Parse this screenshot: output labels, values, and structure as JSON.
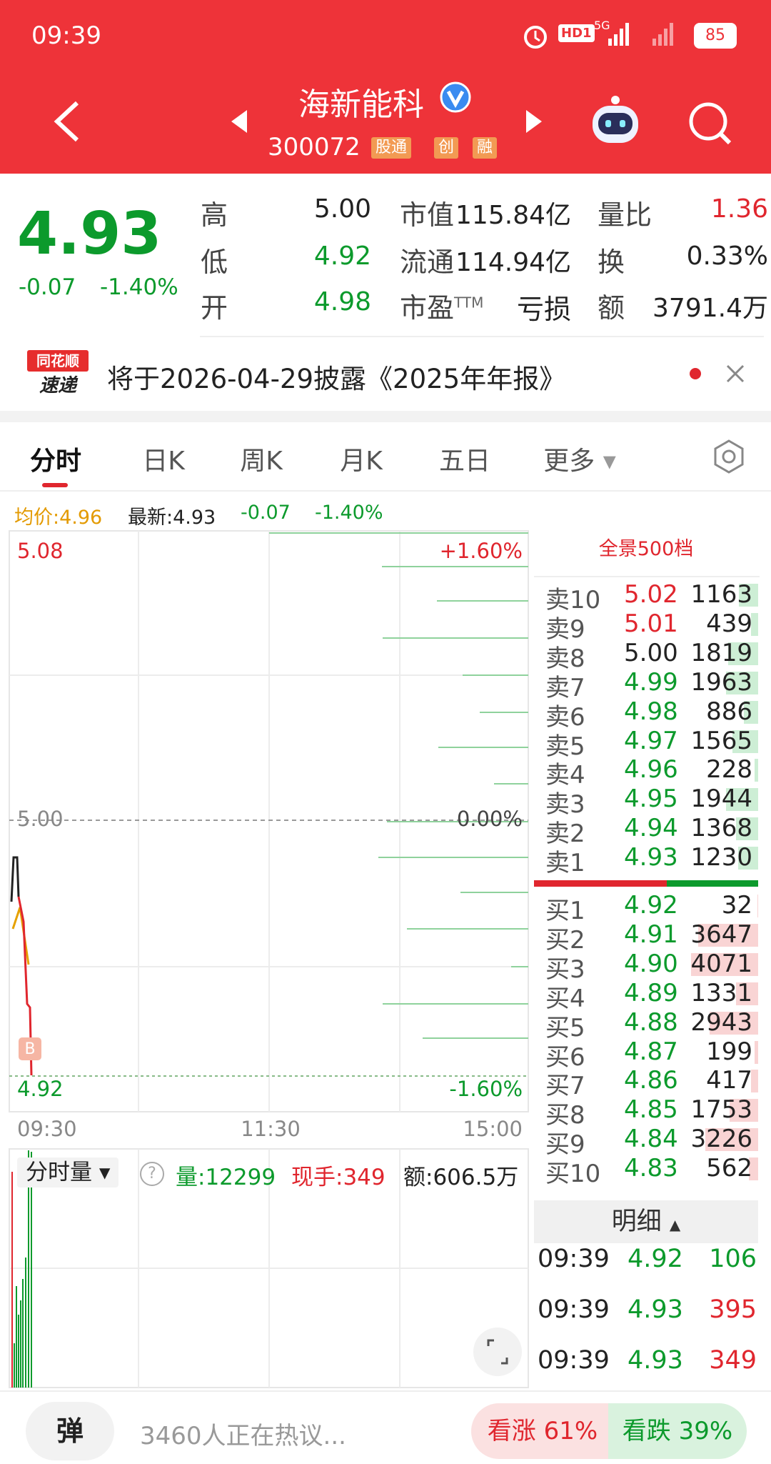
{
  "status_bar": {
    "time": "09:39",
    "hd": "HD1",
    "network": "5G",
    "battery": "85"
  },
  "header": {
    "name": "海新能科",
    "code": "300072",
    "tags": [
      "股通",
      "创",
      "融"
    ]
  },
  "quote": {
    "price": "4.93",
    "change": "-0.07",
    "change_pct": "-1.40%",
    "stats": [
      {
        "label": "高",
        "value": "5.00"
      },
      {
        "label": "低",
        "value": "4.92"
      },
      {
        "label": "开",
        "value": "4.98"
      },
      {
        "label": "市值",
        "value": "115.84亿"
      },
      {
        "label": "流通",
        "value": "114.94亿"
      },
      {
        "label": "市盈",
        "label_sup": "TTM",
        "value": "亏损"
      },
      {
        "label": "量比",
        "value": "1.36"
      },
      {
        "label": "换",
        "value": "0.33%"
      },
      {
        "label": "额",
        "value": "3791.4万"
      }
    ]
  },
  "news": {
    "badge_top": "同花顺",
    "badge_bottom": "速递",
    "text": "将于2026-04-29披露《2025年年报》"
  },
  "tabs": [
    "分时",
    "日K",
    "周K",
    "月K",
    "五日",
    "更多"
  ],
  "intraday": {
    "avg_price": "均价:4.96",
    "latest": "最新:4.93",
    "change": "-0.07",
    "change_pct": "-1.40%",
    "price_labels": {
      "high": "5.08",
      "mid": "5.00",
      "low": "4.92"
    },
    "pct_labels": {
      "high": "+1.60%",
      "mid": "0.00%",
      "low": "-1.60%"
    },
    "marker": "B",
    "times": [
      "09:30",
      "11:30",
      "15:00"
    ]
  },
  "volume": {
    "selector": "分时量",
    "volume": "量:12299",
    "current": "现手:349",
    "amount": "额:606.5万"
  },
  "order_book": {
    "title": "全景500档",
    "asks": [
      {
        "label": "卖10",
        "price": "5.02",
        "volume": 1163
      },
      {
        "label": "卖9",
        "price": "5.01",
        "volume": 439
      },
      {
        "label": "卖8",
        "price": "5.00",
        "volume": 1819
      },
      {
        "label": "卖7",
        "price": "4.99",
        "volume": 1963
      },
      {
        "label": "卖6",
        "price": "4.98",
        "volume": 886
      },
      {
        "label": "卖5",
        "price": "4.97",
        "volume": 1565
      },
      {
        "label": "卖4",
        "price": "4.96",
        "volume": 228
      },
      {
        "label": "卖3",
        "price": "4.95",
        "volume": 1944
      },
      {
        "label": "卖2",
        "price": "4.94",
        "volume": 1368
      },
      {
        "label": "卖1",
        "price": "4.93",
        "volume": 1230
      }
    ],
    "bids": [
      {
        "label": "买1",
        "price": "4.92",
        "volume": 32
      },
      {
        "label": "买2",
        "price": "4.91",
        "volume": 3647
      },
      {
        "label": "买3",
        "price": "4.90",
        "volume": 4071
      },
      {
        "label": "买4",
        "price": "4.89",
        "volume": 1331
      },
      {
        "label": "买5",
        "price": "4.88",
        "volume": 2943
      },
      {
        "label": "买6",
        "price": "4.87",
        "volume": 199
      },
      {
        "label": "买7",
        "price": "4.86",
        "volume": 417
      },
      {
        "label": "买8",
        "price": "4.85",
        "volume": 1753
      },
      {
        "label": "买9",
        "price": "4.84",
        "volume": 3226
      },
      {
        "label": "买10",
        "price": "4.83",
        "volume": 562
      }
    ]
  },
  "details": {
    "title": "明细",
    "rows": [
      {
        "time": "09:39",
        "price": "4.92",
        "volume": "106"
      },
      {
        "time": "09:39",
        "price": "4.93",
        "volume": "395"
      },
      {
        "time": "09:39",
        "price": "4.93",
        "volume": "349"
      }
    ]
  },
  "footer": {
    "button": "弹",
    "comments": "3460人正在热议...",
    "bull": "看涨 61%",
    "bear": "看跌 39%"
  }
}
